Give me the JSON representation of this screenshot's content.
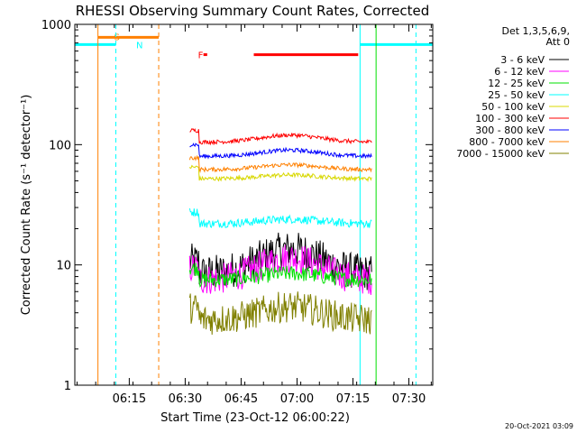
{
  "chart_data": {
    "type": "line",
    "title": "RHESSI Observing Summary Count Rates, Corrected",
    "xlabel": "Start Time (23-Oct-12 06:00:22)",
    "ylabel": "Corrected Count Rate (s⁻¹ detector⁻¹)",
    "yscale": "log",
    "ylim": [
      1,
      1000
    ],
    "xlim_minutes": [
      0,
      96
    ],
    "x_ticks": [
      {
        "label": "06:15",
        "t": 14.6
      },
      {
        "label": "06:30",
        "t": 29.6
      },
      {
        "label": "06:45",
        "t": 44.6
      },
      {
        "label": "07:00",
        "t": 59.6
      },
      {
        "label": "07:15",
        "t": 74.6
      },
      {
        "label": "07:30",
        "t": 89.6
      }
    ],
    "y_ticks": [
      {
        "label": "1",
        "v": 1
      },
      {
        "label": "10",
        "v": 10
      },
      {
        "label": "100",
        "v": 100
      },
      {
        "label": "1000",
        "v": 1000
      }
    ],
    "legend_header": [
      "Det 1,3,5,6,9,",
      "Att 0"
    ],
    "legend_position": "right",
    "data_start_minute": 30.8,
    "data_end_minute": 79.8,
    "series": [
      {
        "name": "3 - 6 keV",
        "color": "#000000",
        "base": 8.5,
        "bump": 5,
        "noise": 0.35
      },
      {
        "name": "6 - 12 keV",
        "color": "#ff00ff",
        "base": 7.5,
        "bump": 4,
        "noise": 0.3
      },
      {
        "name": "12 - 25 keV",
        "color": "#00e000",
        "base": 7.5,
        "bump": 1,
        "noise": 0.15
      },
      {
        "name": "25 - 50 keV",
        "color": "#00ffff",
        "base": 22,
        "bump": 2,
        "noise": 0.08
      },
      {
        "name": "50 - 100 keV",
        "color": "#d8d800",
        "base": 52,
        "bump": 4,
        "noise": 0.04
      },
      {
        "name": "100 - 300 keV",
        "color": "#ff0000",
        "base": 105,
        "bump": 15,
        "noise": 0.04
      },
      {
        "name": "300 - 800 keV",
        "color": "#0000ff",
        "base": 80,
        "bump": 10,
        "noise": 0.04
      },
      {
        "name": "800 - 7000 keV",
        "color": "#ff8000",
        "base": 62,
        "bump": 6,
        "noise": 0.04
      },
      {
        "name": "7000 - 15000 keV",
        "color": "#808000",
        "base": 3.5,
        "bump": 1,
        "noise": 0.3
      }
    ],
    "flags": [
      {
        "label": "S",
        "color": "#ff8000",
        "value": 780,
        "segments": [
          [
            6.2,
            22.5
          ]
        ]
      },
      {
        "label": "N",
        "color": "#00ffff",
        "value": 680,
        "segments": [
          [
            0,
            11
          ],
          [
            76.5,
            96
          ]
        ]
      },
      {
        "label": "F",
        "color": "#ff0000",
        "value": 560,
        "segments": [
          [
            34.5,
            35.5
          ],
          [
            48,
            76
          ]
        ]
      }
    ],
    "vertical_lines": [
      {
        "t": 6.2,
        "color": "#ff8000",
        "style": "solid"
      },
      {
        "t": 11,
        "color": "#00ffff",
        "style": "dashed"
      },
      {
        "t": 22.5,
        "color": "#ff8000",
        "style": "dashed"
      },
      {
        "t": 76.5,
        "color": "#00ffff",
        "style": "solid"
      },
      {
        "t": 80.8,
        "color": "#00e000",
        "style": "solid"
      },
      {
        "t": 91.5,
        "color": "#00ffff",
        "style": "dashed"
      }
    ]
  },
  "footer_timestamp": "20-Oct-2021 03:09"
}
